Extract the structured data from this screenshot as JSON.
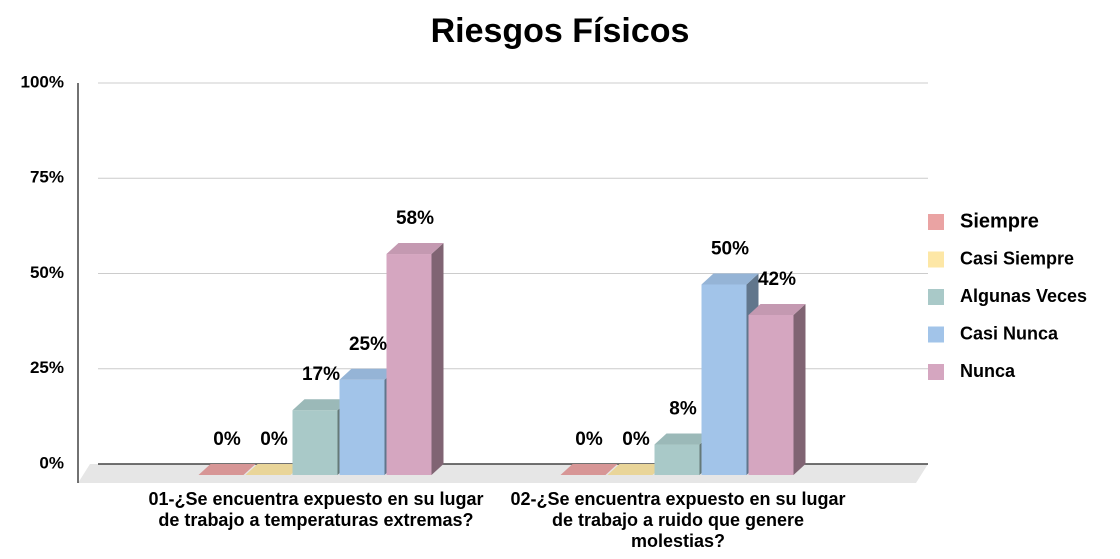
{
  "chart_data": {
    "type": "bar3d",
    "title": "Riesgos Físicos",
    "categories": [
      "01-¿Se encuentra expuesto en su lugar de trabajo a temperaturas extremas?",
      "02-¿Se encuentra expuesto en su lugar de trabajo a ruido que genere molestias?"
    ],
    "series": [
      {
        "name": "Siempre",
        "color": "#eaa3a3",
        "values": [
          0,
          0
        ],
        "value_labels": [
          "0%",
          "0%"
        ]
      },
      {
        "name": "Casi Siempre",
        "color": "#fde7a6",
        "values": [
          0,
          0
        ],
        "value_labels": [
          "0%",
          "0%"
        ]
      },
      {
        "name": "Algunas Veces",
        "color": "#a9c9c8",
        "values": [
          17,
          8
        ],
        "value_labels": [
          "17%",
          "8%"
        ]
      },
      {
        "name": "Casi Nunca",
        "color": "#a2c4e9",
        "values": [
          25,
          50
        ],
        "value_labels": [
          "25%",
          "50%"
        ]
      },
      {
        "name": "Nunca",
        "color": "#d5a6c0",
        "values": [
          58,
          42
        ],
        "value_labels": [
          "58%",
          "42%"
        ]
      }
    ],
    "ylim": [
      0,
      100
    ],
    "yticks": [
      {
        "value": 0,
        "label": "0%"
      },
      {
        "value": 25,
        "label": "25%"
      },
      {
        "value": 50,
        "label": "50%"
      },
      {
        "value": 75,
        "label": "75%"
      },
      {
        "value": 100,
        "label": "100%"
      }
    ],
    "grid": true,
    "legend": "right"
  }
}
